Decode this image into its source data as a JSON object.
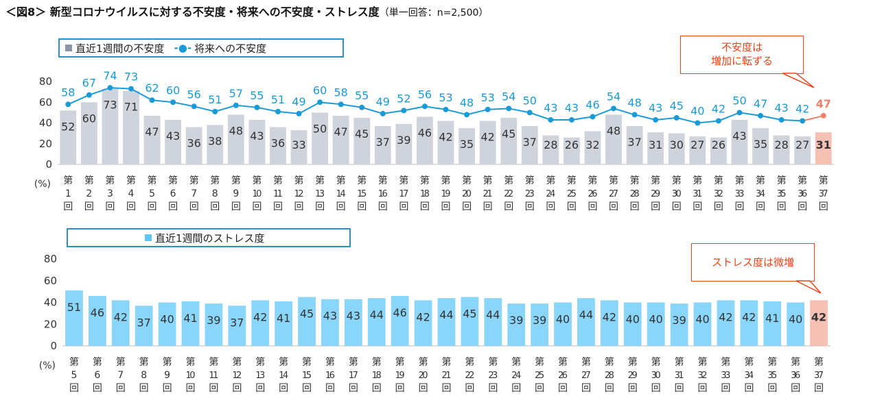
{
  "title": "＜図8＞ 新型コロナウイルスに対する不安度・将来への不安度・ストレス度",
  "subtitle": "（単一回答：n=2,500）",
  "colors": {
    "gray_bar": "#cfd4dc",
    "line": "#1a9ad6",
    "highlight_bar": "#f7c0b4",
    "highlight_point": "#f08068",
    "stress_bar": "#8ad6fa",
    "callout": "#e8431a"
  },
  "callouts": {
    "top": "不安度は\n増加に転ずる",
    "bottom": "ストレス度は微増"
  },
  "chart_data": [
    {
      "type": "bar+line",
      "legend": [
        "直近1週間の不安度",
        "将来への不安度"
      ],
      "yunit": "(%)",
      "ylim": [
        0,
        80
      ],
      "yticks": [
        0,
        20,
        40,
        60,
        80
      ],
      "categories": [
        "第1回",
        "第2回",
        "第3回",
        "第4回",
        "第5回",
        "第6回",
        "第7回",
        "第8回",
        "第9回",
        "第10回",
        "第11回",
        "第12回",
        "第13回",
        "第14回",
        "第15回",
        "第16回",
        "第17回",
        "第18回",
        "第19回",
        "第20回",
        "第21回",
        "第22回",
        "第23回",
        "第24回",
        "第25回",
        "第26回",
        "第27回",
        "第28回",
        "第29回",
        "第30回",
        "第31回",
        "第32回",
        "第33回",
        "第34回",
        "第35回",
        "第36回",
        "第37回"
      ],
      "series": [
        {
          "name": "直近1週間の不安度",
          "kind": "bar",
          "values": [
            52,
            60,
            73,
            71,
            47,
            43,
            36,
            38,
            48,
            43,
            36,
            33,
            50,
            47,
            45,
            37,
            39,
            46,
            42,
            35,
            42,
            45,
            37,
            28,
            26,
            32,
            48,
            37,
            31,
            30,
            27,
            26,
            43,
            35,
            28,
            27,
            31
          ]
        },
        {
          "name": "将来への不安度",
          "kind": "line",
          "values": [
            58,
            67,
            74,
            73,
            62,
            60,
            56,
            51,
            57,
            55,
            51,
            49,
            60,
            58,
            55,
            49,
            52,
            56,
            53,
            48,
            53,
            54,
            50,
            43,
            43,
            46,
            54,
            48,
            43,
            45,
            40,
            42,
            50,
            47,
            43,
            42,
            47
          ]
        }
      ]
    },
    {
      "type": "bar",
      "legend": [
        "直近1週間のストレス度"
      ],
      "yunit": "(%)",
      "ylim": [
        0,
        80
      ],
      "yticks": [
        0,
        20,
        40,
        60,
        80
      ],
      "categories": [
        "第5回",
        "第6回",
        "第7回",
        "第8回",
        "第9回",
        "第10回",
        "第11回",
        "第12回",
        "第13回",
        "第14回",
        "第15回",
        "第16回",
        "第17回",
        "第18回",
        "第19回",
        "第20回",
        "第21回",
        "第22回",
        "第23回",
        "第24回",
        "第25回",
        "第26回",
        "第27回",
        "第28回",
        "第29回",
        "第30回",
        "第31回",
        "第32回",
        "第33回",
        "第34回",
        "第35回",
        "第36回",
        "第37回"
      ],
      "series": [
        {
          "name": "直近1週間のストレス度",
          "kind": "bar",
          "values": [
            51,
            46,
            42,
            37,
            40,
            41,
            39,
            37,
            42,
            41,
            45,
            43,
            43,
            44,
            46,
            42,
            44,
            45,
            44,
            39,
            39,
            40,
            44,
            42,
            40,
            40,
            39,
            40,
            42,
            42,
            41,
            40,
            42
          ]
        }
      ]
    }
  ]
}
